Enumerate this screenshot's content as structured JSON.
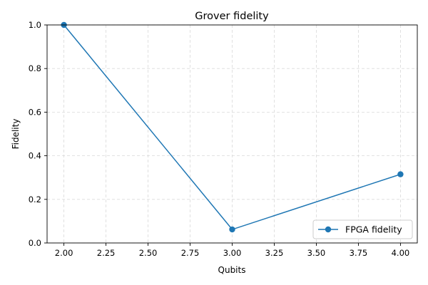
{
  "chart_data": {
    "type": "line",
    "title": "Grover fidelity",
    "xlabel": "Qubits",
    "ylabel": "Fidelity",
    "xlim": [
      1.9,
      4.1
    ],
    "ylim": [
      0.0,
      1.0
    ],
    "xticks": [
      2.0,
      2.25,
      2.5,
      2.75,
      3.0,
      3.25,
      3.5,
      3.75,
      4.0
    ],
    "xtick_labels": [
      "2.00",
      "2.25",
      "2.50",
      "2.75",
      "3.00",
      "3.25",
      "3.50",
      "3.75",
      "4.00"
    ],
    "yticks": [
      0.0,
      0.2,
      0.4,
      0.6,
      0.8,
      1.0
    ],
    "ytick_labels": [
      "0.0",
      "0.2",
      "0.4",
      "0.6",
      "0.8",
      "1.0"
    ],
    "grid": true,
    "legend_position": "lower-right",
    "series": [
      {
        "name": "FPGA fidelity",
        "color": "#1f77b4",
        "marker": "circle",
        "x": [
          2,
          3,
          4
        ],
        "y": [
          1.0,
          0.062,
          0.315
        ]
      }
    ]
  }
}
